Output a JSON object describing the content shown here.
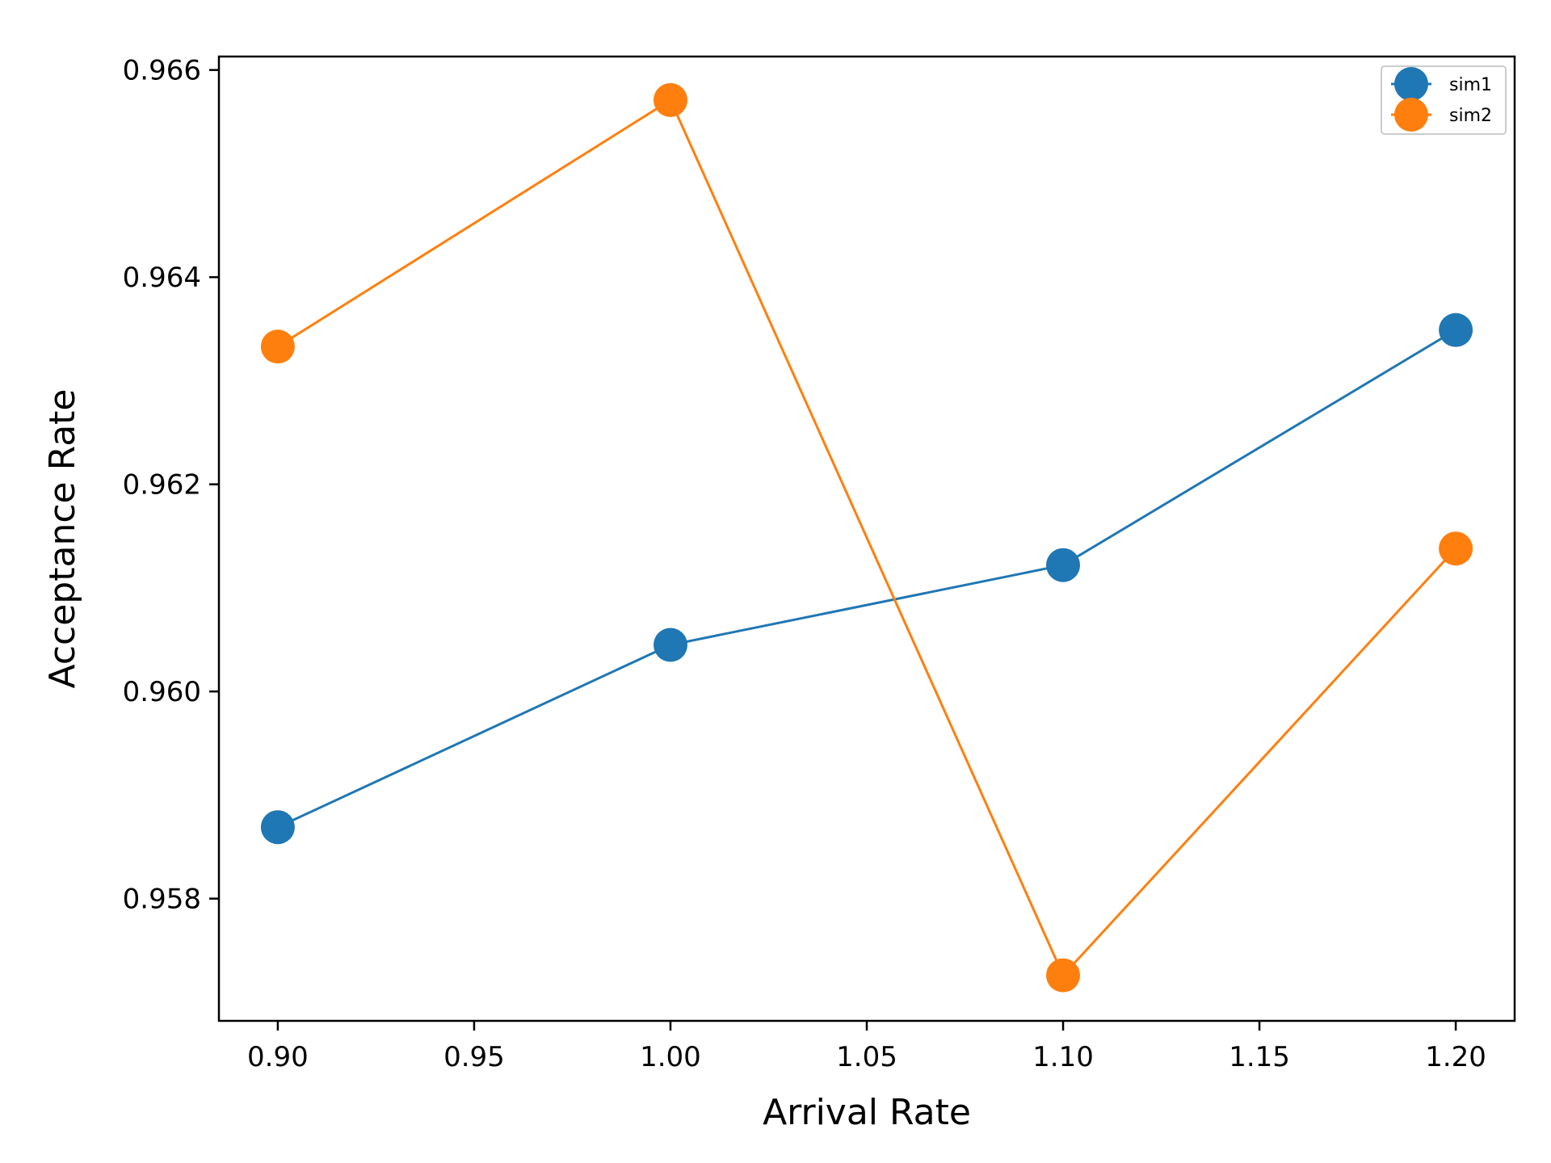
{
  "chart_data": {
    "type": "line",
    "title": "",
    "xlabel": "Arrival Rate",
    "ylabel": "Acceptance Rate",
    "xlim": [
      0.885,
      1.215
    ],
    "ylim": [
      0.95682,
      0.96613
    ],
    "xticks": [
      0.9,
      0.95,
      1.0,
      1.05,
      1.1,
      1.15,
      1.2
    ],
    "xtick_labels": [
      "0.90",
      "0.95",
      "1.00",
      "1.05",
      "1.10",
      "1.15",
      "1.20"
    ],
    "yticks": [
      0.958,
      0.96,
      0.962,
      0.964,
      0.966
    ],
    "ytick_labels": [
      "0.958",
      "0.960",
      "0.962",
      "0.964",
      "0.966"
    ],
    "grid": false,
    "legend_position": "top-right",
    "x": [
      0.9,
      1.0,
      1.1,
      1.2
    ],
    "series": [
      {
        "name": "sim1",
        "color": "#1f77b4",
        "values": [
          0.95869,
          0.96045,
          0.96122,
          0.96349
        ]
      },
      {
        "name": "sim2",
        "color": "#ff7f0e",
        "values": [
          0.96333,
          0.96571,
          0.95726,
          0.96138
        ]
      }
    ]
  }
}
